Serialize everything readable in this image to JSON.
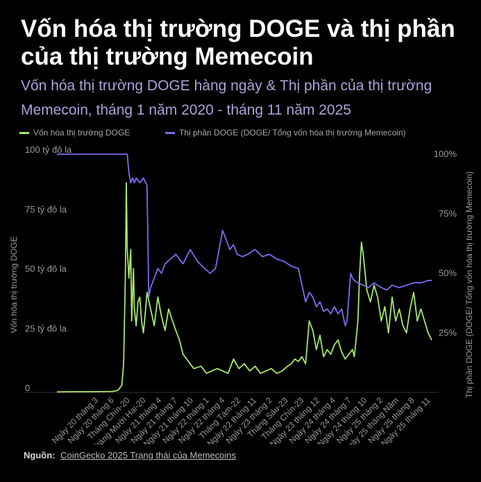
{
  "header": {
    "title": "Vốn hóa thị trường DOGE và thị phần của thị trường Memecoin",
    "subtitle": "Vốn hóa thị trường DOGE hàng ngày & Thị phần của thị trường Memecoin, tháng 1 năm 2020 - tháng 11 năm 2025"
  },
  "footer": {
    "source_label": "Nguồn:",
    "source_link": "CoinGecko 2025 Trạng thái của Memecoins"
  },
  "colors": {
    "mcap_series": "#a6e86a",
    "dominance_series": "#7b6cf0",
    "axis_text": "#9a9a9a",
    "background": "#000000"
  },
  "chart_data": {
    "type": "line",
    "x_ticks": [
      "Ngày 20 tháng 3",
      "Ngày 20 tháng 6",
      "Tháng Chín-20",
      "Tháng Mười Hai-20",
      "Ngày 21 tháng 4",
      "Ngày 21 tháng 7",
      "Ngày 21 tháng 10",
      "Ngày 22 tháng 1",
      "Ngày 22 tháng 4",
      "Tháng Tám-22",
      "Ngày 22 tháng 11",
      "Ngày 23 tháng 2",
      "Tháng Sáu-23",
      "Tháng Chín-23",
      "Ngày 23 tháng 12",
      "Ngày 24 tháng 4",
      "Ngày 24 tháng 7",
      "Ngày 24 tháng 10",
      "Ngày 25 tháng 2",
      "Ngày 25 tháng Năm",
      "Ngày 25 tháng 8",
      "Ngày 25 tháng 11"
    ],
    "y_left": {
      "label": "Vốn hóa thị trường DOGE",
      "ticks": [
        "0",
        "25 tỷ đô la",
        "50 tỷ đô la",
        "75 tỷ đô la",
        "100 tỷ đô la"
      ],
      "range": [
        0,
        100
      ],
      "unit": "tỷ đô la"
    },
    "y_right": {
      "label": "Thị phần DOGE (DOGE/ Tổng vốn hóa thị trường Memecoin)",
      "ticks": [
        "25%",
        "50%",
        "75%",
        "100%"
      ],
      "range": [
        0,
        100
      ],
      "unit": "%"
    },
    "grid": false,
    "legend_position": "top",
    "series": [
      {
        "name": "Vốn hóa thị trường DOGE",
        "axis": "left",
        "x": [
          0,
          1,
          2,
          3,
          3.2,
          3.4,
          3.6,
          3.7,
          3.8,
          3.85,
          3.9,
          4.0,
          4.1,
          4.15,
          4.25,
          4.3,
          4.4,
          4.5,
          4.6,
          4.7,
          4.8,
          4.9,
          5.0,
          5.2,
          5.4,
          5.6,
          5.8,
          6.0,
          6.2,
          6.5,
          6.8,
          7.0,
          7.3,
          7.6,
          8.0,
          8.3,
          8.6,
          8.9,
          9.2,
          9.5,
          9.8,
          10.1,
          10.4,
          10.7,
          11.0,
          11.3,
          11.6,
          11.9,
          12.2,
          12.5,
          12.8,
          13.0,
          13.2,
          13.4,
          13.6,
          13.8,
          14.0,
          14.2,
          14.4,
          14.6,
          14.8,
          15.0,
          15.2,
          15.4,
          15.6,
          15.8,
          16.0,
          16.2,
          16.4,
          16.5,
          16.6,
          16.7,
          16.8,
          16.9,
          17.0,
          17.2,
          17.4,
          17.6,
          17.8,
          18.0,
          18.2,
          18.4,
          18.6,
          18.8,
          19.0,
          19.2,
          19.4,
          19.6,
          19.8,
          20.0,
          20.2,
          20.4,
          20.6,
          20.8
        ],
        "values": [
          0.2,
          0.3,
          0.3,
          0.4,
          0.5,
          1,
          3,
          12,
          50,
          88,
          60,
          48,
          60,
          30,
          52,
          35,
          28,
          38,
          40,
          30,
          25,
          33,
          42,
          35,
          28,
          40,
          32,
          26,
          35,
          28,
          22,
          16,
          13,
          10,
          11,
          8,
          9,
          10,
          9,
          8,
          14,
          10,
          12,
          9,
          11,
          8,
          9,
          10,
          8,
          9,
          11,
          12,
          14,
          13,
          15,
          12,
          30,
          26,
          18,
          24,
          15,
          18,
          16,
          20,
          22,
          17,
          14,
          16,
          18,
          15,
          22,
          30,
          50,
          63,
          58,
          43,
          38,
          45,
          40,
          30,
          36,
          25,
          40,
          30,
          35,
          28,
          25,
          35,
          42,
          30,
          35,
          30,
          25,
          22
        ],
        "color": "#a6e86a"
      },
      {
        "name": "Thị phần DOGE (DOGE/ Tổng vốn hóa thị trường Memecoin)",
        "axis": "right",
        "x": [
          0,
          1,
          2,
          3,
          3.5,
          3.9,
          4.0,
          4.1,
          4.2,
          4.3,
          4.4,
          4.6,
          4.8,
          5.0,
          5.1,
          5.2,
          5.4,
          5.6,
          5.8,
          6.0,
          6.3,
          6.6,
          7.0,
          7.4,
          7.8,
          8.2,
          8.5,
          8.8,
          9.2,
          9.6,
          9.8,
          10.0,
          10.3,
          10.6,
          11.0,
          11.4,
          11.8,
          12.2,
          12.6,
          13.0,
          13.4,
          13.6,
          13.8,
          14.0,
          14.2,
          14.4,
          14.6,
          14.8,
          15.0,
          15.2,
          15.4,
          15.6,
          15.8,
          16.0,
          16.1,
          16.2,
          16.3,
          16.4,
          16.5,
          16.7,
          17.0,
          17.3,
          17.6,
          18.0,
          18.3,
          18.6,
          19.0,
          19.4,
          19.8,
          20.2,
          20.6,
          20.8
        ],
        "values": [
          100,
          100,
          100,
          100,
          100,
          100,
          92,
          88,
          90,
          88,
          90,
          88,
          90,
          87,
          40,
          44,
          48,
          52,
          50,
          54,
          56,
          58,
          54,
          60,
          55,
          52,
          50,
          52,
          68,
          60,
          62,
          58,
          57,
          58,
          60,
          57,
          58,
          56,
          55,
          53,
          52,
          45,
          38,
          42,
          40,
          36,
          38,
          34,
          35,
          33,
          36,
          33,
          35,
          28,
          30,
          40,
          50,
          48,
          47,
          46,
          45,
          44,
          46,
          44,
          43,
          45,
          44,
          45,
          46,
          46,
          47,
          47
        ],
        "color": "#7b6cf0"
      }
    ]
  }
}
